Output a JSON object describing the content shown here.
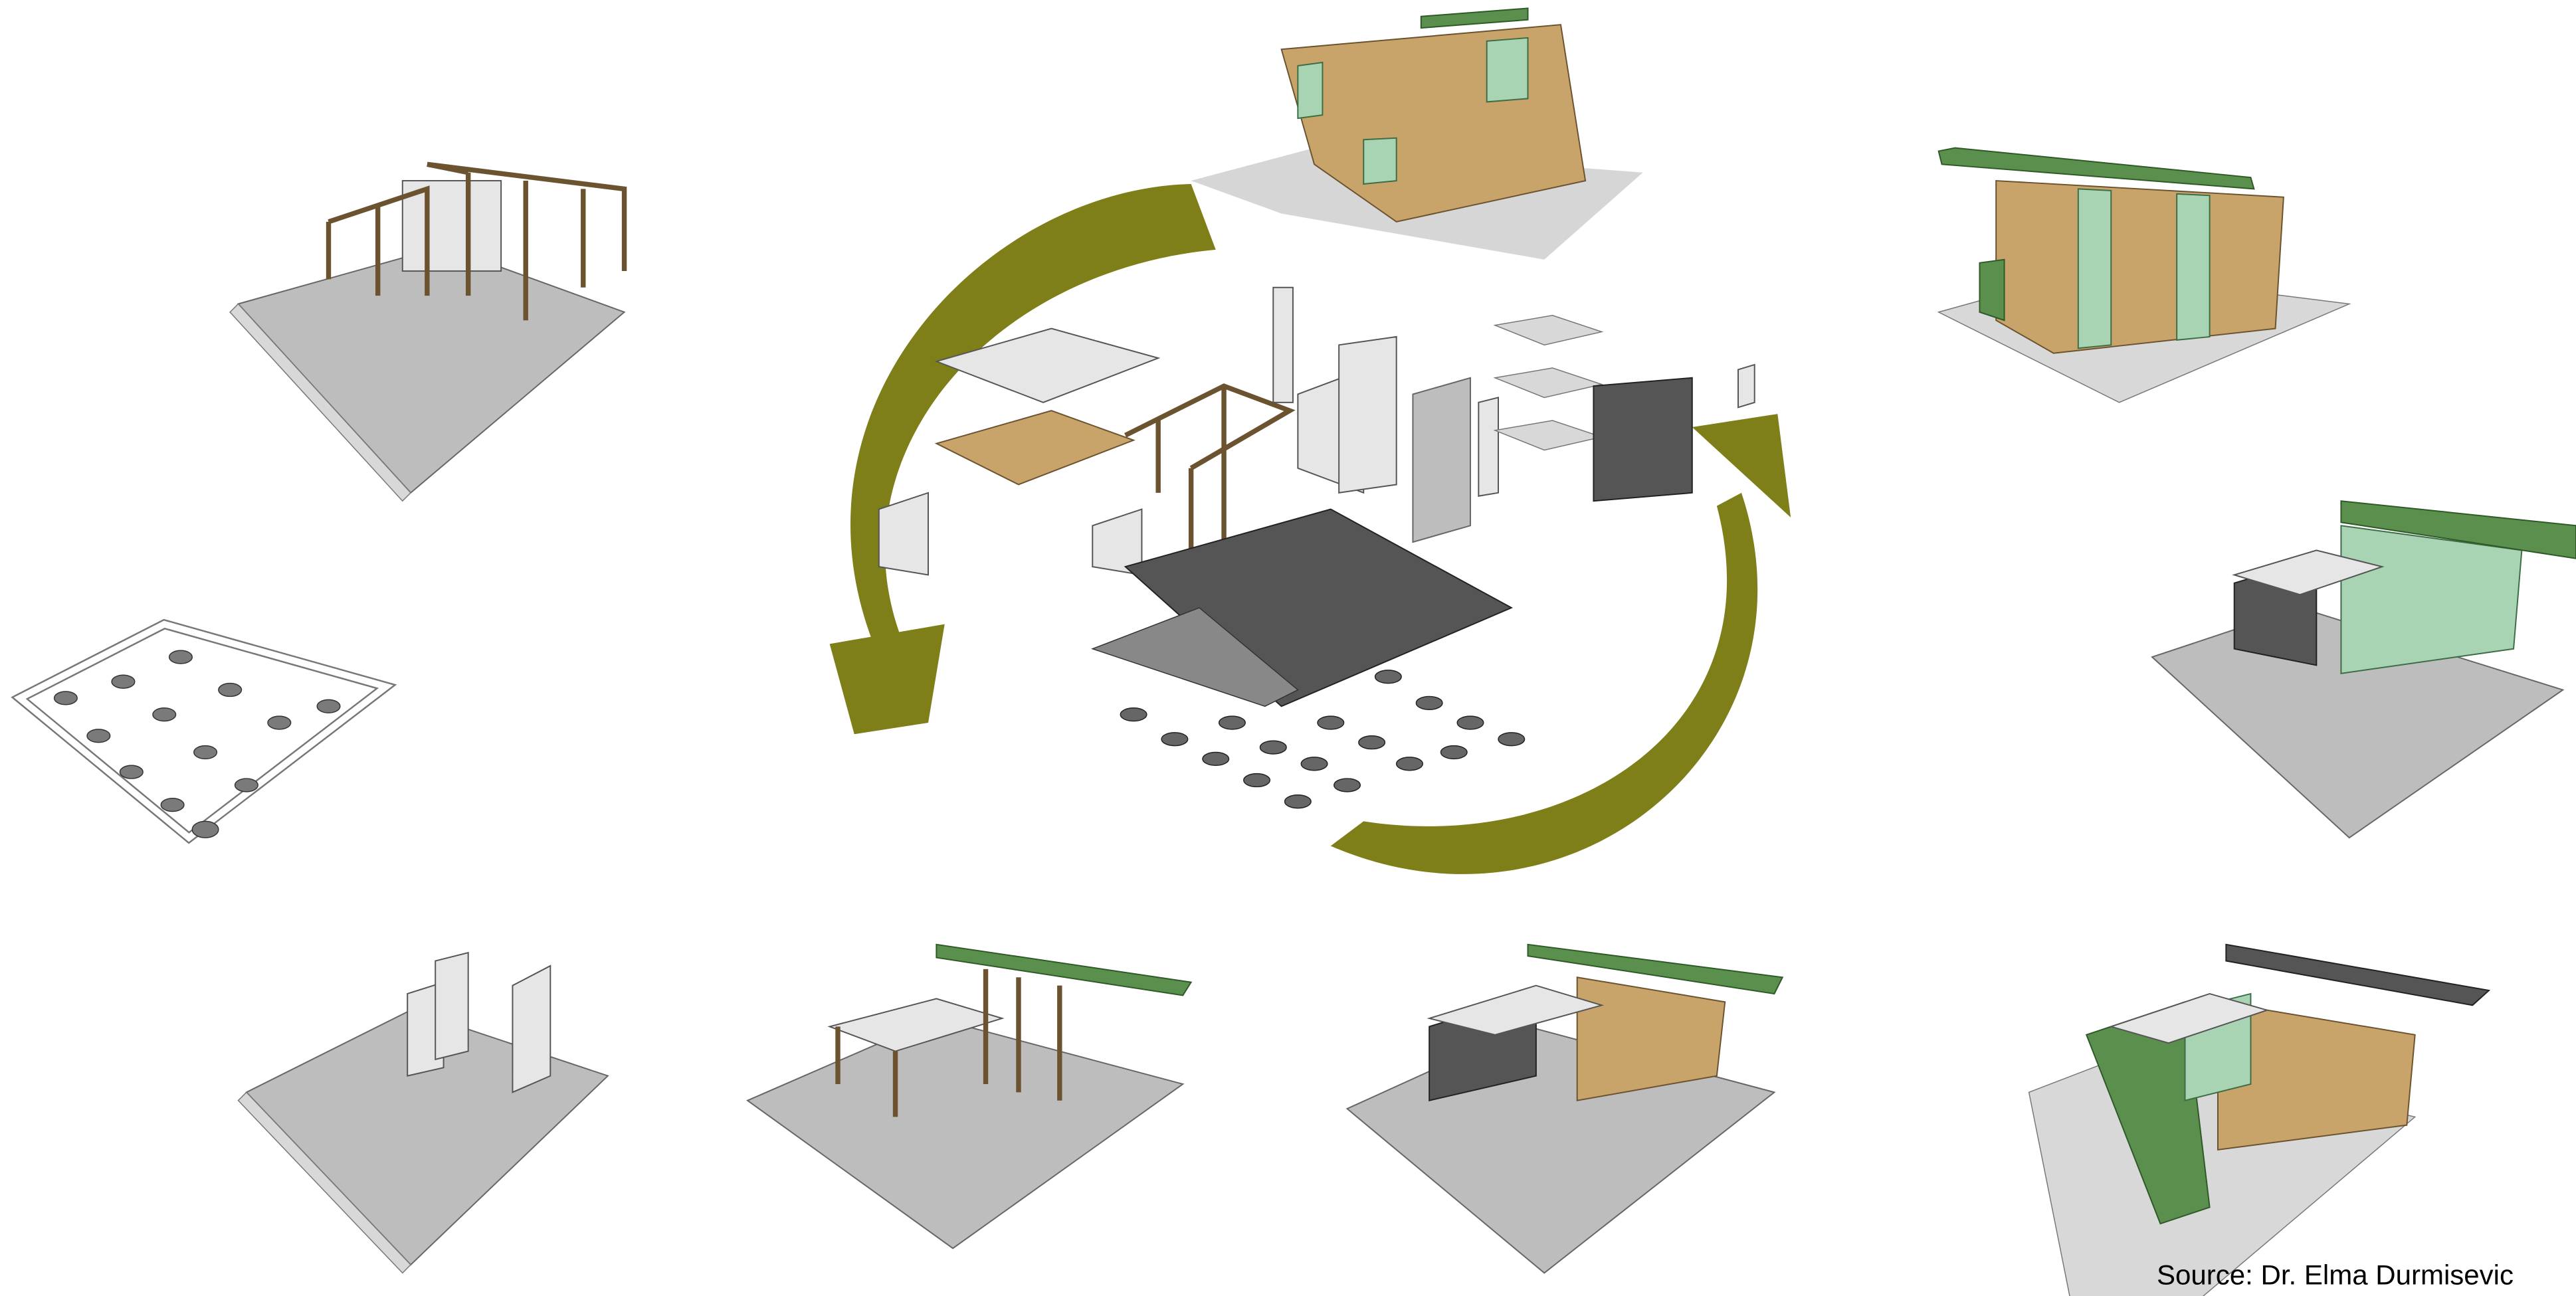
{
  "source": "Source: Dr. Elma Durmisevic"
}
